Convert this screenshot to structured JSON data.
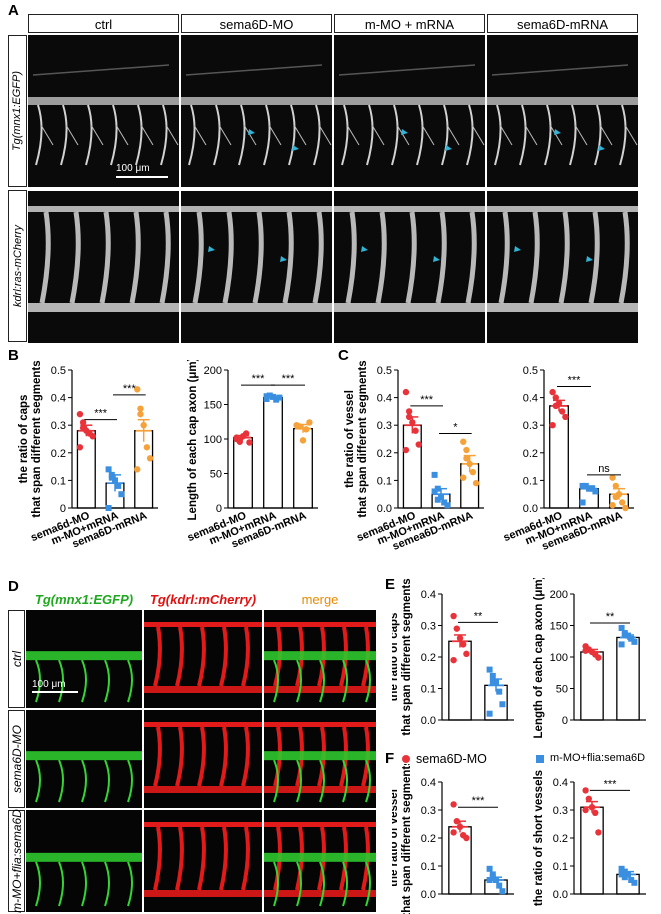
{
  "panel_letters": {
    "a": "A",
    "b": "B",
    "c": "C",
    "d": "D",
    "e": "E",
    "f": "F"
  },
  "panelA": {
    "columns": [
      "ctrl",
      "sema6D-MO",
      "m-MO + mRNA",
      "sema6D-mRNA"
    ],
    "rows": [
      "Tg(mnx1:EGFP)",
      "kdrl:ras-mCherry"
    ],
    "scalebar": "100 μm"
  },
  "panelD": {
    "channels": [
      "Tg(mnx1:EGFP)",
      "Tg(kdrl:mCherry)",
      "merge"
    ],
    "channel_colors": [
      "#1fa81f",
      "#e01010",
      "#e88a00"
    ],
    "rows": [
      "ctrl",
      "sema6D-MO",
      "m-MO+flia:sema6D"
    ],
    "scalebar": "100 μm"
  },
  "legendF": {
    "items": [
      "sema6D-MO",
      "m-MO+flia:sema6D"
    ],
    "colors": [
      "#e8333a",
      "#3a8fe0"
    ]
  },
  "chart_data": [
    {
      "id": "B1",
      "type": "bar",
      "categories": [
        "sema6d-MO",
        "m-MO+mRNA",
        "sema6D-mRNA"
      ],
      "values": [
        0.28,
        0.09,
        0.28
      ],
      "errors": [
        0.02,
        0.03,
        0.04
      ],
      "colors": [
        "#e8333a",
        "#3a8fe0",
        "#f5a23a"
      ],
      "markers": [
        "circle",
        "square",
        "circle"
      ],
      "points": [
        [
          0.34,
          0.29,
          0.28,
          0.27,
          0.26,
          0.22,
          0.31
        ],
        [
          0.14,
          0.12,
          0.1,
          0.08,
          0.05,
          0.0,
          0.11
        ],
        [
          0.43,
          0.36,
          0.3,
          0.22,
          0.18,
          0.14,
          0.34
        ]
      ],
      "ylabel": [
        "the ratio of caps",
        "that span different segments"
      ],
      "ylim": [
        0,
        0.5
      ],
      "yticks": [
        "0",
        "0.1",
        "0.2",
        "0.3",
        "0.4",
        "0.5"
      ],
      "sig": [
        {
          "from": 0,
          "to": 1,
          "y": 0.32,
          "label": "***"
        },
        {
          "from": 1,
          "to": 2,
          "y": 0.41,
          "label": "***"
        }
      ]
    },
    {
      "id": "B2",
      "type": "bar",
      "categories": [
        "sema6d-MO",
        "m-MO+mRNA",
        "sema6D-mRNA"
      ],
      "values": [
        102,
        160,
        115
      ],
      "errors": [
        3,
        2,
        6
      ],
      "colors": [
        "#e8333a",
        "#3a8fe0",
        "#f5a23a"
      ],
      "markers": [
        "circle",
        "square",
        "circle"
      ],
      "points": [
        [
          100,
          96,
          104,
          108,
          95,
          102,
          99
        ],
        [
          158,
          163,
          161,
          157,
          160,
          162
        ],
        [
          120,
          118,
          98,
          114,
          124
        ]
      ],
      "ylabel": [
        "Length of each cap axon (μm)"
      ],
      "ylim": [
        0,
        200
      ],
      "yticks": [
        "0",
        "50",
        "100",
        "150",
        "200"
      ],
      "sig": [
        {
          "from": 0,
          "to": 1,
          "y": 178,
          "label": "***"
        },
        {
          "from": 1,
          "to": 2,
          "y": 178,
          "label": "***"
        }
      ]
    },
    {
      "id": "C1",
      "type": "bar",
      "categories": [
        "sema6d-MO",
        "m-MO+mRNA",
        "semea6D-mRNA"
      ],
      "values": [
        0.3,
        0.05,
        0.16
      ],
      "errors": [
        0.03,
        0.02,
        0.03
      ],
      "colors": [
        "#e8333a",
        "#3a8fe0",
        "#f5a23a"
      ],
      "markers": [
        "circle",
        "square",
        "circle"
      ],
      "points": [
        [
          0.42,
          0.35,
          0.31,
          0.28,
          0.23,
          0.21,
          0.33
        ],
        [
          0.12,
          0.07,
          0.04,
          0.02,
          0.01,
          0.06,
          0.03
        ],
        [
          0.24,
          0.21,
          0.16,
          0.13,
          0.09,
          0.11,
          0.18
        ]
      ],
      "ylabel": [
        "the ratio of vessel",
        "that span different segments"
      ],
      "ylim": [
        0,
        0.5
      ],
      "yticks": [
        "0.0",
        "0.1",
        "0.2",
        "0.3",
        "0.4",
        "0.5"
      ],
      "sig": [
        {
          "from": 0,
          "to": 1,
          "y": 0.37,
          "label": "***"
        },
        {
          "from": 1,
          "to": 2,
          "y": 0.27,
          "label": "*"
        }
      ]
    },
    {
      "id": "C2",
      "type": "bar",
      "categories": [
        "sema6d-MO",
        "m-MO+mRNA",
        "semea6D-mRNA"
      ],
      "values": [
        0.37,
        0.07,
        0.05
      ],
      "errors": [
        0.02,
        0.01,
        0.02
      ],
      "colors": [
        "#e8333a",
        "#3a8fe0",
        "#f5a23a"
      ],
      "markers": [
        "circle",
        "square",
        "circle"
      ],
      "points": [
        [
          0.42,
          0.4,
          0.38,
          0.35,
          0.33,
          0.3,
          0.37
        ],
        [
          0.08,
          0.08,
          0.07,
          0.07,
          0.06,
          0.02
        ],
        [
          0.11,
          0.08,
          0.05,
          0.02,
          0.0,
          0.01,
          0.04
        ]
      ],
      "ylabel": [],
      "ylim": [
        0,
        0.5
      ],
      "yticks": [
        "0.0",
        "0.1",
        "0.2",
        "0.3",
        "0.4",
        "0.5"
      ],
      "sig": [
        {
          "from": 0,
          "to": 1,
          "y": 0.44,
          "label": "***"
        },
        {
          "from": 1,
          "to": 2,
          "y": 0.12,
          "label": "ns"
        }
      ]
    },
    {
      "id": "E1",
      "type": "bar",
      "categories": [
        "",
        ""
      ],
      "values": [
        0.25,
        0.11
      ],
      "errors": [
        0.02,
        0.02
      ],
      "colors": [
        "#e8333a",
        "#3a8fe0"
      ],
      "markers": [
        "circle",
        "square"
      ],
      "points": [
        [
          0.33,
          0.29,
          0.26,
          0.24,
          0.21,
          0.19
        ],
        [
          0.16,
          0.14,
          0.12,
          0.09,
          0.05,
          0.02,
          0.12
        ]
      ],
      "ylabel": [
        "the ratio of caps",
        "that span different segments"
      ],
      "ylim": [
        0,
        0.4
      ],
      "yticks": [
        "0.0",
        "0.1",
        "0.2",
        "0.3",
        "0.4"
      ],
      "sig": [
        {
          "from": 0,
          "to": 1,
          "y": 0.31,
          "label": "**"
        }
      ]
    },
    {
      "id": "E2",
      "type": "bar",
      "categories": [
        "",
        ""
      ],
      "values": [
        108,
        131
      ],
      "errors": [
        4,
        4
      ],
      "colors": [
        "#e8333a",
        "#3a8fe0"
      ],
      "markers": [
        "circle",
        "square"
      ],
      "points": [
        [
          117,
          112,
          108,
          104,
          99,
          110
        ],
        [
          146,
          138,
          134,
          129,
          124,
          120,
          135
        ]
      ],
      "ylabel": [
        "Length of  each cap axon (μm)"
      ],
      "ylim": [
        0,
        200
      ],
      "yticks": [
        "0",
        "50",
        "100",
        "150",
        "200"
      ],
      "sig": [
        {
          "from": 0,
          "to": 1,
          "y": 154,
          "label": "**"
        }
      ]
    },
    {
      "id": "F1",
      "type": "bar",
      "categories": [
        "",
        ""
      ],
      "values": [
        0.24,
        0.05
      ],
      "errors": [
        0.02,
        0.01
      ],
      "colors": [
        "#e8333a",
        "#3a8fe0"
      ],
      "markers": [
        "circle",
        "square"
      ],
      "points": [
        [
          0.32,
          0.26,
          0.24,
          0.21,
          0.2,
          0.22
        ],
        [
          0.09,
          0.07,
          0.05,
          0.03,
          0.01,
          0.05,
          0.06
        ]
      ],
      "ylabel": [
        "the ratio of vessel",
        "that span different segments"
      ],
      "ylim": [
        0,
        0.4
      ],
      "yticks": [
        "0.0",
        "0.1",
        "0.2",
        "0.3",
        "0.4"
      ],
      "sig": [
        {
          "from": 0,
          "to": 1,
          "y": 0.31,
          "label": "***"
        }
      ]
    },
    {
      "id": "F2",
      "type": "bar",
      "categories": [
        "",
        ""
      ],
      "values": [
        0.31,
        0.07
      ],
      "errors": [
        0.02,
        0.01
      ],
      "colors": [
        "#e8333a",
        "#3a8fe0"
      ],
      "markers": [
        "circle",
        "square"
      ],
      "points": [
        [
          0.37,
          0.34,
          0.31,
          0.29,
          0.22,
          0.3
        ],
        [
          0.09,
          0.08,
          0.07,
          0.05,
          0.04,
          0.07,
          0.06
        ]
      ],
      "ylabel": [
        "the ratio of short vessels"
      ],
      "ylim": [
        0,
        0.4
      ],
      "yticks": [
        "0.0",
        "0.1",
        "0.2",
        "0.3",
        "0.4"
      ],
      "sig": [
        {
          "from": 0,
          "to": 1,
          "y": 0.37,
          "label": "***"
        }
      ]
    }
  ]
}
